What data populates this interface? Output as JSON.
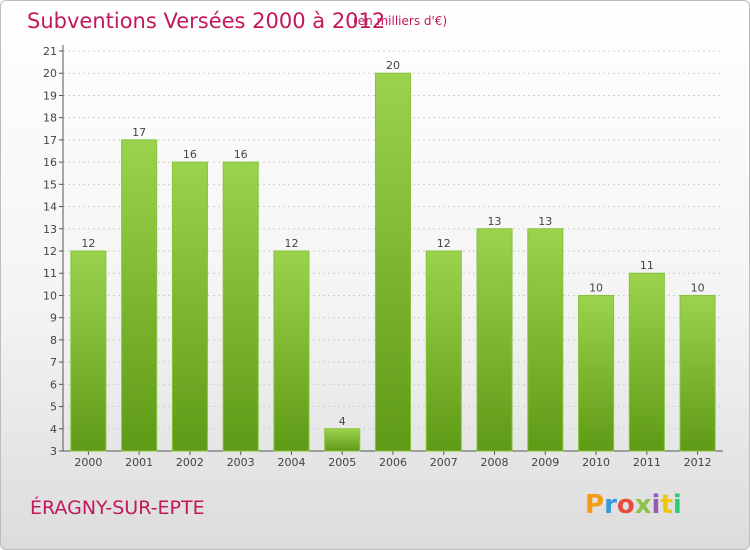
{
  "header": {
    "title": "Subventions Versées 2000 à 2012",
    "subtitle": "(en milliers d'€)"
  },
  "footer": {
    "commune": "ÉRAGNY-SUR-EPTE",
    "logo": "Proxiti",
    "logo_colors": [
      "#f39c12",
      "#3498db",
      "#e74c3c",
      "#8bc34a",
      "#9b59b6",
      "#f1c40f",
      "#2ecc71"
    ]
  },
  "chart_data": {
    "type": "bar",
    "categories": [
      "2000",
      "2001",
      "2002",
      "2003",
      "2004",
      "2005",
      "2006",
      "2007",
      "2008",
      "2009",
      "2010",
      "2011",
      "2012"
    ],
    "values": [
      12,
      17,
      16,
      16,
      12,
      4,
      20,
      12,
      13,
      13,
      10,
      11,
      10
    ],
    "ylim": [
      3,
      21
    ],
    "yticks": [
      3,
      4,
      5,
      6,
      7,
      8,
      9,
      10,
      11,
      12,
      13,
      14,
      15,
      16,
      17,
      18,
      19,
      20,
      21
    ],
    "grid": true,
    "bar_color_top": "#9bd34e",
    "bar_color_bottom": "#5f9a16",
    "label_color": "#444444"
  }
}
